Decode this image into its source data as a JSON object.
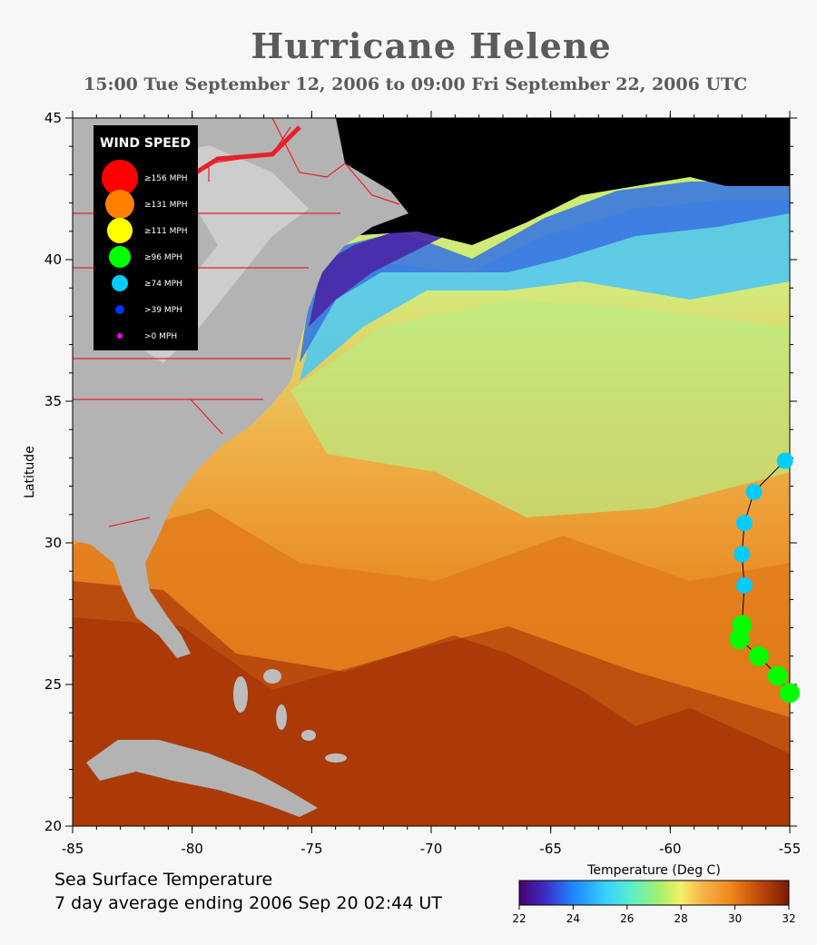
{
  "title": "Hurricane Helene",
  "subtitle": "15:00 Tue September 12, 2006 to 09:00 Fri September 22, 2006  UTC",
  "caption": {
    "line1": "Sea Surface Temperature",
    "line2": "7 day average ending 2006 Sep 20 02:44 UT"
  },
  "map": {
    "lon_range": [
      -85,
      -55
    ],
    "lat_range": [
      20,
      45
    ],
    "x_ticks": [
      "-85",
      "-80",
      "-75",
      "-70",
      "-65",
      "-60",
      "-55"
    ],
    "y_ticks": [
      "20",
      "25",
      "30",
      "35",
      "40",
      "45"
    ],
    "y_axis_label": "Latitude"
  },
  "legend": {
    "title": "WIND SPEED",
    "items": [
      {
        "label": "≥156 MPH",
        "color": "#ff0000"
      },
      {
        "label": "≥131 MPH",
        "color": "#ff7f00"
      },
      {
        "label": "≥111 MPH",
        "color": "#ffff00"
      },
      {
        "label": "≥96 MPH",
        "color": "#00ff00"
      },
      {
        "label": "≥74 MPH",
        "color": "#00ccff"
      },
      {
        "label": ">39 MPH",
        "color": "#0033ff"
      },
      {
        "label": ">0 MPH",
        "color": "#ff00ff"
      }
    ]
  },
  "colorbar": {
    "label": "Temperature (Deg C)",
    "range": [
      22,
      32
    ],
    "ticks": [
      "22",
      "24",
      "26",
      "28",
      "30",
      "32"
    ]
  },
  "track": [
    {
      "lon": -55.2,
      "lat": 32.9,
      "category": "≥74 MPH"
    },
    {
      "lon": -56.5,
      "lat": 31.8,
      "category": "≥74 MPH"
    },
    {
      "lon": -56.9,
      "lat": 30.7,
      "category": "≥74 MPH"
    },
    {
      "lon": -57.0,
      "lat": 29.6,
      "category": "≥74 MPH"
    },
    {
      "lon": -56.9,
      "lat": 28.5,
      "category": "≥74 MPH"
    },
    {
      "lon": -57.0,
      "lat": 27.1,
      "category": "≥96 MPH"
    },
    {
      "lon": -57.1,
      "lat": 26.6,
      "category": "≥96 MPH"
    },
    {
      "lon": -56.3,
      "lat": 26.0,
      "category": "≥96 MPH"
    },
    {
      "lon": -55.5,
      "lat": 25.3,
      "category": "≥96 MPH"
    },
    {
      "lon": -55.0,
      "lat": 24.7,
      "category": "≥96 MPH"
    }
  ]
}
